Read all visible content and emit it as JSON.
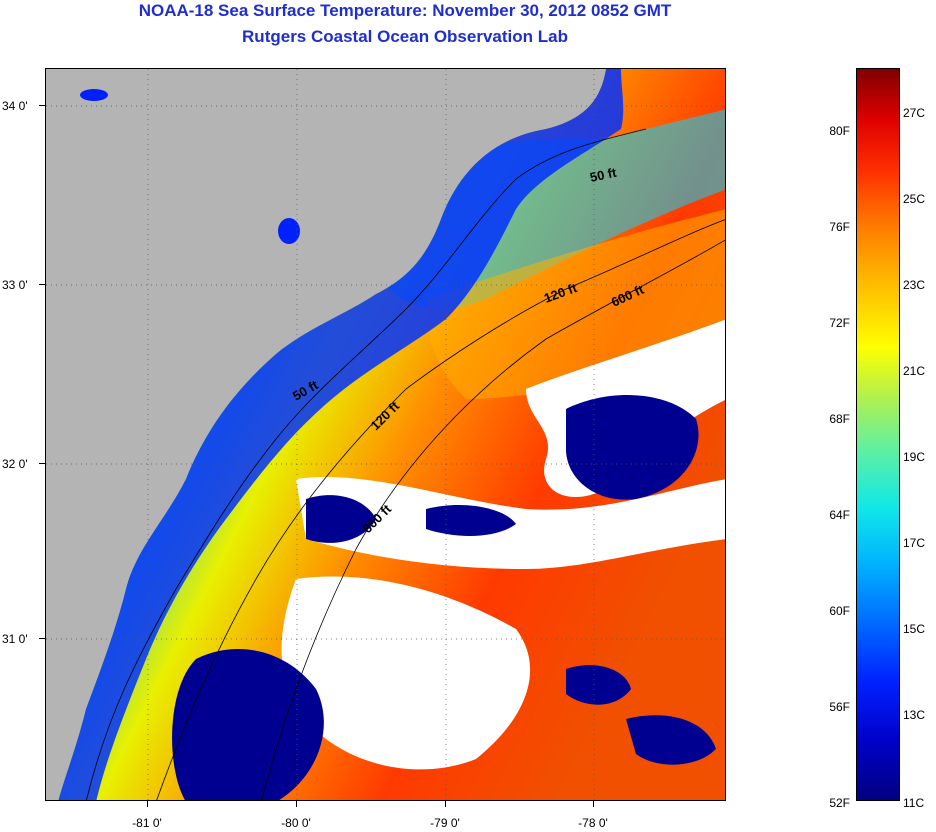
{
  "header": {
    "title": "NOAA-18 Sea Surface Temperature:  November 30, 2012 0852 GMT",
    "subtitle": "Rutgers Coastal Ocean Observation Lab"
  },
  "map": {
    "lat_labels": [
      "34 0'",
      "33 0'",
      "32 0'",
      "31 0'"
    ],
    "lon_labels": [
      "-81 0'",
      "-80 0'",
      "-79 0'",
      "-78 0'"
    ],
    "isobaths": [
      "50 ft",
      "120 ft",
      "600 ft"
    ],
    "colors": {
      "land": "#b4b4b4",
      "cloud": "#ffffff",
      "cold_water": "#000080",
      "warm_water": "#ff3000"
    }
  },
  "colorbar": {
    "fahrenheit": [
      "80F",
      "76F",
      "72F",
      "68F",
      "64F",
      "60F",
      "56F",
      "52F"
    ],
    "celsius": [
      "27C",
      "25C",
      "23C",
      "21C",
      "19C",
      "17C",
      "15C",
      "13C",
      "11C"
    ],
    "colors": [
      "#000080",
      "#0020ff",
      "#00b0ff",
      "#60f0a0",
      "#ffff00",
      "#ff8000",
      "#e00000",
      "#800000"
    ]
  }
}
